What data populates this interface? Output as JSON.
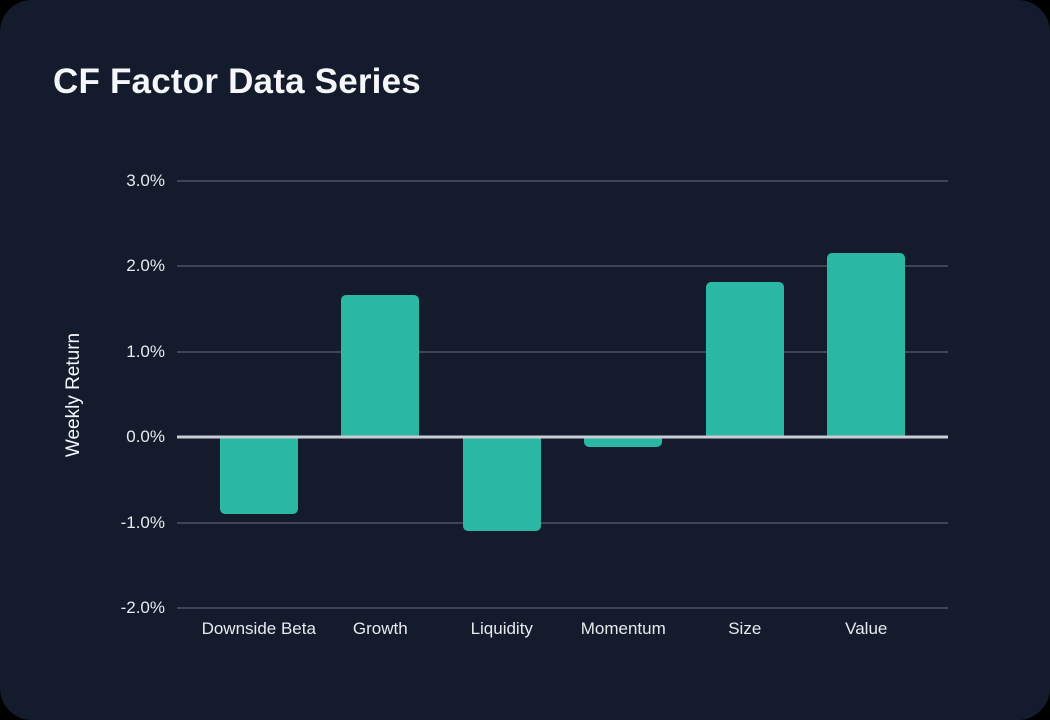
{
  "page": {
    "title": "CF Factor Data Series"
  },
  "colors": {
    "page_background": "#000000",
    "card_background": "#131B2D",
    "bar": "#2AB7A4",
    "gridline": "#3E4656",
    "zero_line": "#C9CED6",
    "text_primary": "#F5F7FA",
    "tick_text": "#E8EAEE"
  },
  "chart_data": {
    "type": "bar",
    "title": "CF Factor Data Series",
    "categories": [
      "Downside Beta",
      "Growth",
      "Liquidity",
      "Momentum",
      "Size",
      "Value"
    ],
    "values": [
      -0.9,
      1.66,
      -1.1,
      -0.12,
      1.82,
      2.16
    ],
    "xlabel": "",
    "ylabel": "Weekly Return",
    "ylim": [
      -2.0,
      3.0
    ],
    "yticks": [
      3,
      2,
      1,
      0,
      -1,
      -2
    ],
    "ytick_labels": [
      "3.0%",
      "2.0%",
      "1.0%",
      "0.0%",
      "-1.0%",
      "-2.0%"
    ],
    "value_unit": "%",
    "grid": true,
    "legend": false,
    "bar_color": "#2AB7A4"
  }
}
